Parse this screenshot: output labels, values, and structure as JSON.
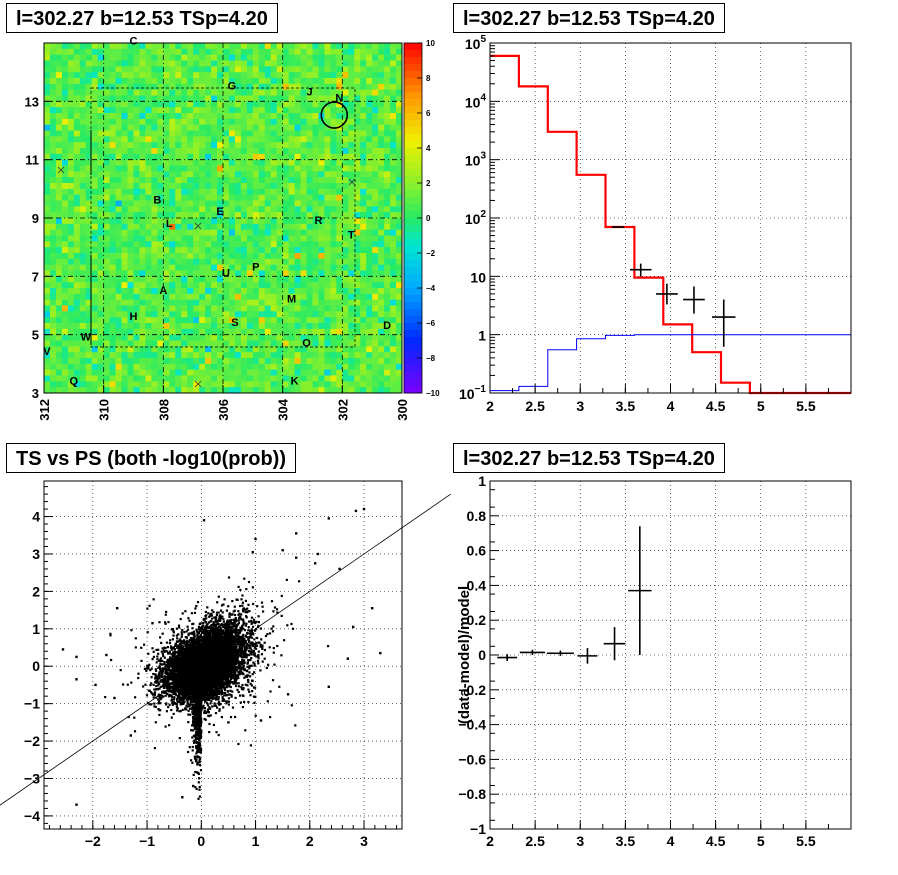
{
  "chart_data": [
    {
      "type": "heatmap",
      "title": "l=302.27 b=12.53 TSp=4.20",
      "x_ticks": [
        "312",
        "310",
        "308",
        "306",
        "304",
        "302",
        "300"
      ],
      "y_ticks": [
        "3",
        "5",
        "7",
        "9",
        "11",
        "13"
      ],
      "colorbar_ticks": [
        "10",
        "8",
        "6",
        "4",
        "2",
        "0",
        "−2",
        "−4",
        "−6",
        "−8",
        "−10"
      ],
      "xlim": [
        312,
        300
      ],
      "ylim": [
        3,
        15
      ],
      "zlim": [
        -10,
        10
      ],
      "source_labels": [
        {
          "text": "C",
          "l": 309.0,
          "b": 14.95
        },
        {
          "text": "G",
          "l": 305.7,
          "b": 13.4
        },
        {
          "text": "J",
          "l": 303.1,
          "b": 13.2
        },
        {
          "text": "N",
          "l": 302.1,
          "b": 13.0
        },
        {
          "text": "B",
          "l": 308.2,
          "b": 9.5
        },
        {
          "text": "E",
          "l": 306.1,
          "b": 9.1
        },
        {
          "text": "L",
          "l": 307.8,
          "b": 8.7
        },
        {
          "text": "R",
          "l": 302.8,
          "b": 8.8
        },
        {
          "text": "T",
          "l": 301.7,
          "b": 8.3
        },
        {
          "text": "P",
          "l": 304.9,
          "b": 7.2
        },
        {
          "text": "U",
          "l": 305.9,
          "b": 7.0
        },
        {
          "text": "A",
          "l": 308.0,
          "b": 6.4
        },
        {
          "text": "M",
          "l": 303.7,
          "b": 6.1
        },
        {
          "text": "H",
          "l": 309.0,
          "b": 5.5
        },
        {
          "text": "S",
          "l": 305.6,
          "b": 5.3
        },
        {
          "text": "D",
          "l": 300.5,
          "b": 5.2
        },
        {
          "text": "W",
          "l": 310.6,
          "b": 4.8
        },
        {
          "text": "O",
          "l": 303.2,
          "b": 4.6
        },
        {
          "text": "V",
          "l": 311.9,
          "b": 4.3
        },
        {
          "text": "Q",
          "l": 311.0,
          "b": 3.3
        },
        {
          "text": "K",
          "l": 303.6,
          "b": 3.3
        }
      ],
      "circle": {
        "l": 302.27,
        "b": 12.53
      },
      "grid": true
    },
    {
      "type": "line",
      "title": "l=302.27 b=12.53 TSp=4.20",
      "xlim": [
        2,
        6
      ],
      "ylim": [
        0.1,
        100000
      ],
      "log_y": true,
      "grid": true,
      "x_ticks": [
        "2",
        "2.5",
        "3",
        "3.5",
        "4",
        "4.5",
        "5",
        "5.5"
      ],
      "y_ticks": [
        {
          "base": "10",
          "exp": "5"
        },
        {
          "base": "10",
          "exp": "4"
        },
        {
          "base": "10",
          "exp": "3"
        },
        {
          "base": "10",
          "exp": "2"
        },
        {
          "base": "10",
          "exp": ""
        },
        {
          "base": "1",
          "exp": ""
        },
        {
          "base": "10",
          "exp": "−1"
        }
      ],
      "series": [
        {
          "color": "#ff0000",
          "kind": "step",
          "edges": [
            2.0,
            2.32,
            2.64,
            2.96,
            3.28,
            3.6,
            3.92,
            4.24,
            4.56,
            4.88,
            6.0
          ],
          "values": [
            60000,
            18000,
            3000,
            550,
            70,
            9.5,
            1.5,
            0.5,
            0.15,
            0.1
          ]
        },
        {
          "color": "#0000ff",
          "kind": "step",
          "edges": [
            2.0,
            2.32,
            2.64,
            2.96,
            3.28,
            3.6,
            6.0
          ],
          "values": [
            0.11,
            0.13,
            0.55,
            0.85,
            0.97,
            1.0
          ]
        },
        {
          "color": "#000000",
          "kind": "errorbar",
          "points": [
            {
              "x": 3.42,
              "y": 70,
              "xerr": 0.07,
              "ylo": 68,
              "yhi": 72
            },
            {
              "x": 3.67,
              "y": 13,
              "xerr": 0.12,
              "ylo": 10,
              "yhi": 16.5
            },
            {
              "x": 3.96,
              "y": 5,
              "xerr": 0.12,
              "ylo": 3.3,
              "yhi": 7.5
            },
            {
              "x": 4.26,
              "y": 4,
              "xerr": 0.12,
              "ylo": 2.3,
              "yhi": 6.7
            },
            {
              "x": 4.59,
              "y": 2,
              "xerr": 0.13,
              "ylo": 0.62,
              "yhi": 4.0
            }
          ]
        }
      ]
    },
    {
      "type": "scatter",
      "title": "TS vs PS (both -log10(prob))",
      "xlim": [
        -2.9,
        3.7
      ],
      "ylim": [
        -4.35,
        4.95
      ],
      "grid": true,
      "x_ticks": [
        -2,
        -1,
        0,
        1,
        2,
        3
      ],
      "y_ticks": [
        -4,
        -3,
        -2,
        -1,
        0,
        1,
        2,
        3,
        4
      ],
      "trend_line": {
        "x1": -3.8,
        "y1": -3.8,
        "x2": 4.6,
        "y2": 4.6
      },
      "n_points": 9000,
      "outliers": [
        [
          3.0,
          4.2
        ],
        [
          2.85,
          4.15
        ],
        [
          2.35,
          3.95
        ],
        [
          1.75,
          3.55
        ],
        [
          1.5,
          3.1
        ],
        [
          1.0,
          3.4
        ],
        [
          2.15,
          3.0
        ],
        [
          2.55,
          2.6
        ],
        [
          3.15,
          1.55
        ],
        [
          3.3,
          0.35
        ],
        [
          2.7,
          0.2
        ],
        [
          2.1,
          2.75
        ],
        [
          1.75,
          2.9
        ],
        [
          0.95,
          3.05
        ],
        [
          -2.3,
          -3.7
        ],
        [
          -1.6,
          -0.85
        ],
        [
          -1.3,
          -1.85
        ],
        [
          -1.95,
          -0.5
        ],
        [
          -2.3,
          -0.35
        ],
        [
          -2.3,
          0.25
        ],
        [
          -1.55,
          1.55
        ],
        [
          -0.35,
          -3.5
        ],
        [
          -0.15,
          -3.2
        ],
        [
          0.05,
          3.9
        ],
        [
          -0.9,
          1.15
        ],
        [
          2.8,
          1.05
        ],
        [
          1.1,
          -1.45
        ],
        [
          1.6,
          -0.75
        ],
        [
          2.35,
          -0.55
        ],
        [
          -2.55,
          0.45
        ],
        [
          -1.75,
          0.3
        ],
        [
          0.5,
          -1.5
        ]
      ]
    },
    {
      "type": "line",
      "title": "l=302.27 b=12.53 TSp=4.20",
      "ylabel": "(data-model)/model",
      "xlim": [
        2,
        6
      ],
      "ylim": [
        -1,
        1
      ],
      "grid": true,
      "x_ticks": [
        "2",
        "2.5",
        "3",
        "3.5",
        "4",
        "4.5",
        "5",
        "5.5"
      ],
      "y_ticks": [
        "1",
        "0.8",
        "0.6",
        "0.4",
        "0.2",
        "0",
        "−0.2",
        "−0.4",
        "−0.6",
        "−0.8",
        "−1"
      ],
      "points": [
        {
          "x": 2.19,
          "y": -0.015,
          "xerr": 0.11,
          "ylo": -0.035,
          "yhi": 0.005
        },
        {
          "x": 2.47,
          "y": 0.015,
          "xerr": 0.14,
          "ylo": 0.0,
          "yhi": 0.03
        },
        {
          "x": 2.78,
          "y": 0.01,
          "xerr": 0.15,
          "ylo": -0.005,
          "yhi": 0.025
        },
        {
          "x": 3.08,
          "y": -0.005,
          "xerr": 0.11,
          "ylo": -0.05,
          "yhi": 0.04
        },
        {
          "x": 3.38,
          "y": 0.065,
          "xerr": 0.12,
          "ylo": -0.03,
          "yhi": 0.16
        },
        {
          "x": 3.66,
          "y": 0.37,
          "xerr": 0.13,
          "ylo": 0.0,
          "yhi": 0.74
        }
      ]
    }
  ]
}
